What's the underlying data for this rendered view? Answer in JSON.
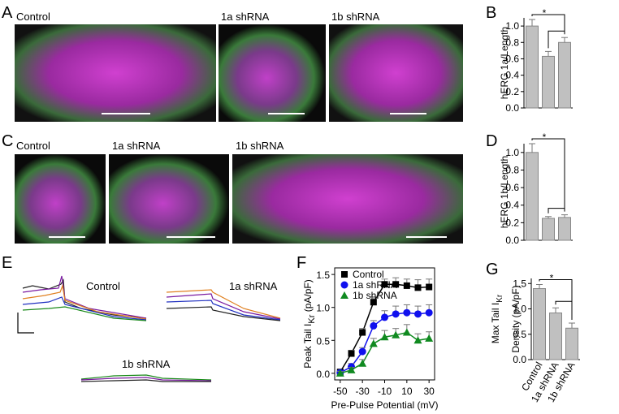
{
  "panels": {
    "letters": [
      "A",
      "B",
      "C",
      "D",
      "E",
      "F",
      "G"
    ],
    "image_labels_a": [
      "Control",
      "1a shRNA",
      "1b shRNA"
    ],
    "image_labels_c": [
      "Control",
      "1a shRNA",
      "1b shRNA"
    ],
    "trace_labels": [
      "Control",
      "1a shRNA",
      "1b shRNA"
    ]
  },
  "chart_data": [
    {
      "type": "bar",
      "ylabel": "hERG 1a/Length",
      "categories": [
        null,
        null,
        null
      ],
      "values": [
        1.0,
        0.63,
        0.8
      ],
      "errors": [
        0.08,
        0.06,
        0.06
      ],
      "color": "#c0c0c0",
      "ylim": [
        0,
        1.1
      ],
      "yticks": [
        {
          "value": 0,
          "label": "0.0"
        },
        0.2,
        0.4,
        0.6,
        0.8,
        {
          "value": 1,
          "label": "1.0"
        }
      ],
      "annotation": "*"
    },
    {
      "type": "bar",
      "ylabel": "hERG 1b/Length",
      "categories": [
        null,
        null,
        null
      ],
      "values": [
        1.0,
        0.25,
        0.26
      ],
      "errors": [
        0.1,
        0.02,
        0.03
      ],
      "color": "#c0c0c0",
      "ylim": [
        0,
        1.1
      ],
      "yticks": [
        {
          "value": 0,
          "label": "0.0"
        },
        0.2,
        0.4,
        0.6,
        0.8,
        {
          "value": 1,
          "label": "1.0"
        }
      ],
      "annotation": "*"
    },
    {
      "type": "scatter",
      "ylabel": [
        "Peak Tail I",
        "Kr",
        " (pA/pF)"
      ],
      "xlabel": "Pre-Pulse Potential (mV)",
      "x": [
        -50,
        -40,
        -30,
        -20,
        -10,
        0,
        10,
        20,
        30
      ],
      "series": [
        {
          "name": "Control",
          "color": "#000000",
          "marker": "square",
          "values": [
            0.02,
            0.3,
            0.62,
            1.08,
            1.35,
            1.35,
            1.33,
            1.3,
            1.31
          ],
          "errors": [
            0.03,
            0.05,
            0.06,
            0.08,
            0.08,
            0.1,
            0.1,
            0.12,
            0.12
          ]
        },
        {
          "name": "1a shRNA",
          "color": "#1010ee",
          "marker": "circle",
          "values": [
            0.01,
            0.1,
            0.33,
            0.72,
            0.85,
            0.9,
            0.92,
            0.9,
            0.92
          ],
          "errors": [
            0.03,
            0.05,
            0.06,
            0.08,
            0.1,
            0.12,
            0.12,
            0.12,
            0.12
          ]
        },
        {
          "name": "1b shRNA",
          "color": "#108a20",
          "marker": "triangle",
          "values": [
            0.0,
            0.05,
            0.15,
            0.45,
            0.55,
            0.58,
            0.62,
            0.5,
            0.53
          ],
          "errors": [
            0.03,
            0.04,
            0.06,
            0.08,
            0.1,
            0.1,
            0.12,
            0.1,
            0.1
          ]
        }
      ],
      "xlim": [
        -55,
        35
      ],
      "xticks": [
        -50,
        -30,
        -10,
        10,
        30
      ],
      "ylim": [
        -0.1,
        1.6
      ],
      "yticks": [
        {
          "value": 0,
          "label": "0.0"
        },
        0.5,
        {
          "value": 1,
          "label": "1.0"
        },
        1.5
      ],
      "legend": "upper-left"
    },
    {
      "type": "bar",
      "ylabel": [
        "Max Tail I",
        "Kr",
        "Density (pA/pF)"
      ],
      "categories": [
        "Control",
        "1a shRNA",
        "1b shRNA"
      ],
      "values": [
        1.4,
        0.92,
        0.62
      ],
      "errors": [
        0.08,
        0.1,
        0.1
      ],
      "color": "#c0c0c0",
      "ylim": [
        0,
        1.6
      ],
      "yticks": [
        {
          "value": 0,
          "label": "0.0"
        },
        0.5,
        {
          "value": 1,
          "label": "1.0"
        },
        1.5
      ],
      "annotation": "*"
    }
  ]
}
